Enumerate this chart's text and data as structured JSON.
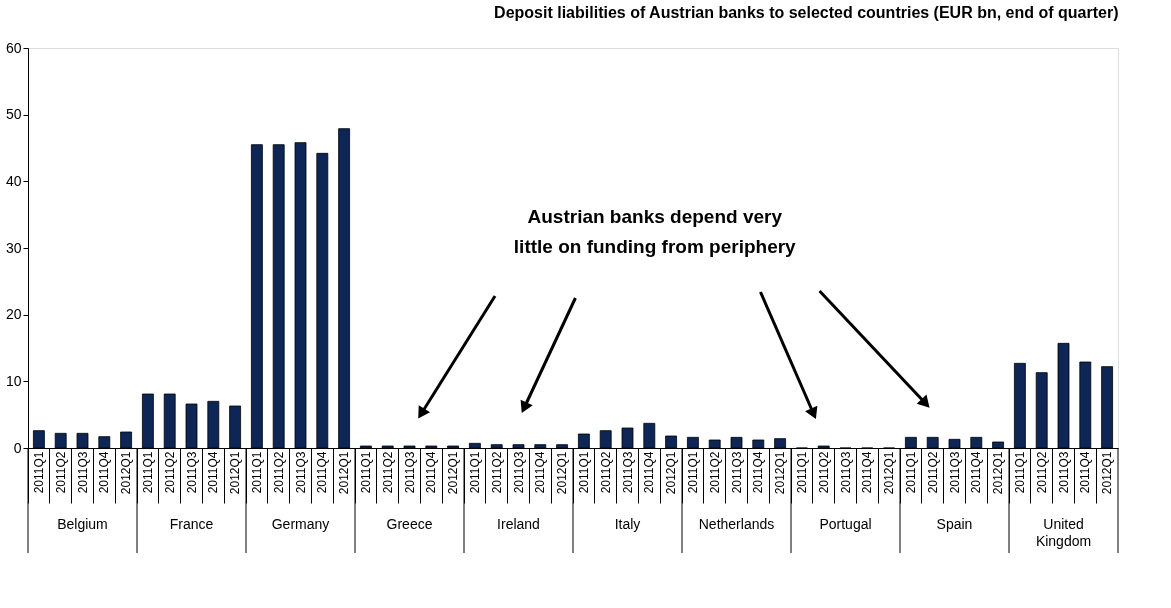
{
  "chart_data": {
    "type": "bar",
    "title": "Deposit liabilities of Austrian banks to selected countries (EUR bn, end of quarter)",
    "categories": [
      "2011Q1",
      "2011Q2",
      "2011Q3",
      "2011Q4",
      "2012Q1",
      "2011Q1",
      "2011Q2",
      "2011Q3",
      "2011Q4",
      "2012Q1",
      "2011Q1",
      "2011Q2",
      "2011Q3",
      "2011Q4",
      "2012Q1",
      "2011Q1",
      "2011Q2",
      "2011Q3",
      "2011Q4",
      "2012Q1",
      "2011Q1",
      "2011Q2",
      "2011Q3",
      "2011Q4",
      "2012Q1",
      "2011Q1",
      "2011Q2",
      "2011Q3",
      "2011Q4",
      "2012Q1",
      "2011Q1",
      "2011Q2",
      "2011Q3",
      "2011Q4",
      "2012Q1",
      "2011Q1",
      "2011Q2",
      "2011Q3",
      "2011Q4",
      "2012Q1",
      "2011Q1",
      "2011Q2",
      "2011Q3",
      "2011Q4",
      "2012Q1",
      "2011Q1",
      "2011Q2",
      "2011Q3",
      "2011Q4",
      "2012Q1"
    ],
    "series": [
      {
        "color": "#0d2656",
        "values": [
          2.6,
          2.2,
          2.2,
          1.7,
          2.4,
          8.1,
          8.1,
          6.6,
          7.0,
          6.3,
          45.5,
          45.5,
          45.8,
          44.2,
          47.9,
          0.3,
          0.3,
          0.3,
          0.3,
          0.3,
          0.7,
          0.5,
          0.5,
          0.5,
          0.5,
          2.1,
          2.6,
          3.0,
          3.7,
          1.8,
          1.6,
          1.2,
          1.6,
          1.2,
          1.4,
          0,
          0.3,
          0,
          0,
          0,
          1.6,
          1.6,
          1.3,
          1.6,
          0.9,
          12.7,
          11.3,
          15.7,
          12.9,
          12.2
        ]
      }
    ],
    "ylim": [
      0,
      60
    ],
    "yticks": [
      0,
      10,
      20,
      30,
      40,
      50,
      60
    ],
    "grid": false,
    "annotations": [
      "Austrian banks depend very\nlittle on funding from periphery",
      "Belgium",
      "France",
      "Germany",
      "Greece",
      "Ireland",
      "Italy",
      "Netherlands",
      "Portugal",
      "Spain",
      "United Kingdom"
    ]
  }
}
